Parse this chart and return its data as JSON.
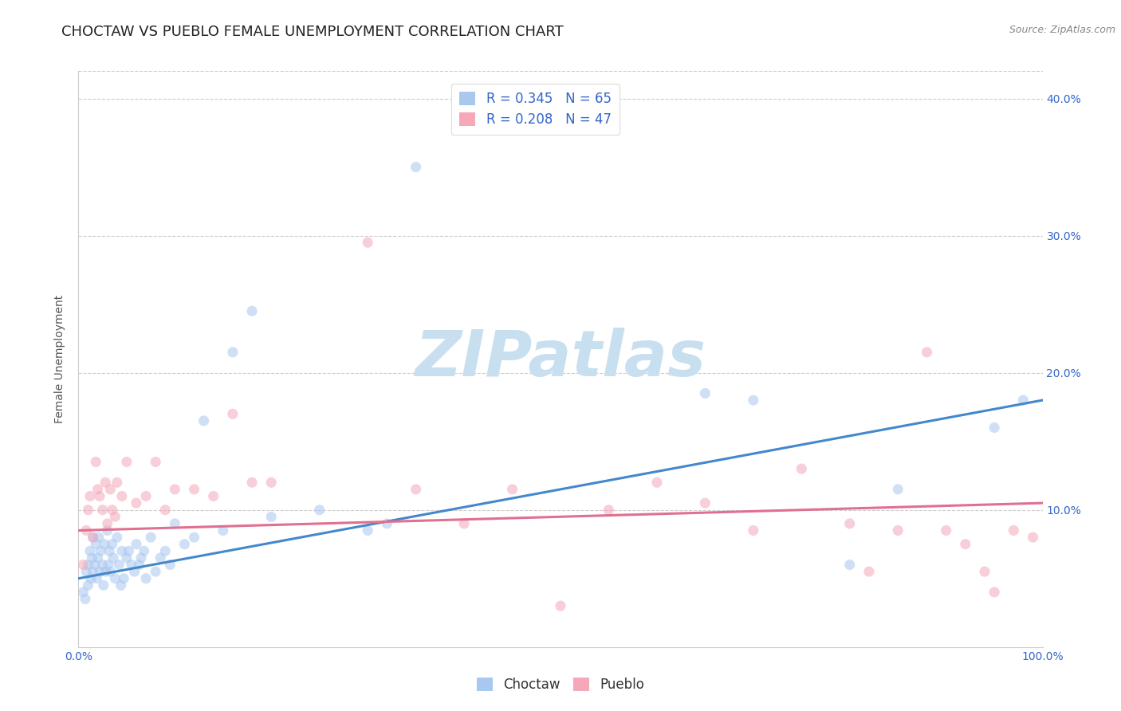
{
  "title": "CHOCTAW VS PUEBLO FEMALE UNEMPLOYMENT CORRELATION CHART",
  "source": "Source: ZipAtlas.com",
  "ylabel": "Female Unemployment",
  "choctaw_R": 0.345,
  "choctaw_N": 65,
  "pueblo_R": 0.208,
  "pueblo_N": 47,
  "choctaw_color": "#A8C8F0",
  "pueblo_color": "#F4A8B8",
  "choctaw_line_color": "#4488CC",
  "pueblo_line_color": "#E07090",
  "background_color": "#FFFFFF",
  "watermark_color": "#C8DFF0",
  "xlim": [
    0.0,
    1.0
  ],
  "ylim": [
    0.0,
    0.42
  ],
  "choctaw_x": [
    0.005,
    0.007,
    0.008,
    0.01,
    0.01,
    0.012,
    0.013,
    0.014,
    0.015,
    0.015,
    0.017,
    0.018,
    0.019,
    0.02,
    0.021,
    0.022,
    0.023,
    0.025,
    0.026,
    0.027,
    0.028,
    0.03,
    0.031,
    0.032,
    0.033,
    0.035,
    0.036,
    0.038,
    0.04,
    0.042,
    0.044,
    0.045,
    0.047,
    0.05,
    0.052,
    0.055,
    0.058,
    0.06,
    0.063,
    0.065,
    0.068,
    0.07,
    0.075,
    0.08,
    0.085,
    0.09,
    0.095,
    0.1,
    0.11,
    0.12,
    0.13,
    0.15,
    0.16,
    0.18,
    0.2,
    0.25,
    0.3,
    0.32,
    0.35,
    0.65,
    0.7,
    0.8,
    0.85,
    0.95,
    0.98
  ],
  "choctaw_y": [
    0.04,
    0.035,
    0.055,
    0.06,
    0.045,
    0.07,
    0.05,
    0.065,
    0.055,
    0.08,
    0.06,
    0.075,
    0.05,
    0.065,
    0.08,
    0.055,
    0.07,
    0.06,
    0.045,
    0.075,
    0.055,
    0.085,
    0.06,
    0.07,
    0.055,
    0.075,
    0.065,
    0.05,
    0.08,
    0.06,
    0.045,
    0.07,
    0.05,
    0.065,
    0.07,
    0.06,
    0.055,
    0.075,
    0.06,
    0.065,
    0.07,
    0.05,
    0.08,
    0.055,
    0.065,
    0.07,
    0.06,
    0.09,
    0.075,
    0.08,
    0.165,
    0.085,
    0.215,
    0.245,
    0.095,
    0.1,
    0.085,
    0.09,
    0.35,
    0.185,
    0.18,
    0.06,
    0.115,
    0.16,
    0.18
  ],
  "pueblo_x": [
    0.005,
    0.008,
    0.01,
    0.012,
    0.015,
    0.018,
    0.02,
    0.022,
    0.025,
    0.028,
    0.03,
    0.033,
    0.035,
    0.038,
    0.04,
    0.045,
    0.05,
    0.06,
    0.07,
    0.08,
    0.09,
    0.1,
    0.12,
    0.14,
    0.16,
    0.18,
    0.2,
    0.3,
    0.35,
    0.4,
    0.45,
    0.5,
    0.55,
    0.6,
    0.65,
    0.7,
    0.75,
    0.8,
    0.82,
    0.85,
    0.88,
    0.9,
    0.92,
    0.94,
    0.95,
    0.97,
    0.99
  ],
  "pueblo_y": [
    0.06,
    0.085,
    0.1,
    0.11,
    0.08,
    0.135,
    0.115,
    0.11,
    0.1,
    0.12,
    0.09,
    0.115,
    0.1,
    0.095,
    0.12,
    0.11,
    0.135,
    0.105,
    0.11,
    0.135,
    0.1,
    0.115,
    0.115,
    0.11,
    0.17,
    0.12,
    0.12,
    0.295,
    0.115,
    0.09,
    0.115,
    0.03,
    0.1,
    0.12,
    0.105,
    0.085,
    0.13,
    0.09,
    0.055,
    0.085,
    0.215,
    0.085,
    0.075,
    0.055,
    0.04,
    0.085,
    0.08
  ],
  "marker_size": 90,
  "alpha": 0.55,
  "title_fontsize": 13,
  "axis_label_fontsize": 10,
  "tick_fontsize": 10,
  "legend_fontsize": 12,
  "source_fontsize": 9
}
